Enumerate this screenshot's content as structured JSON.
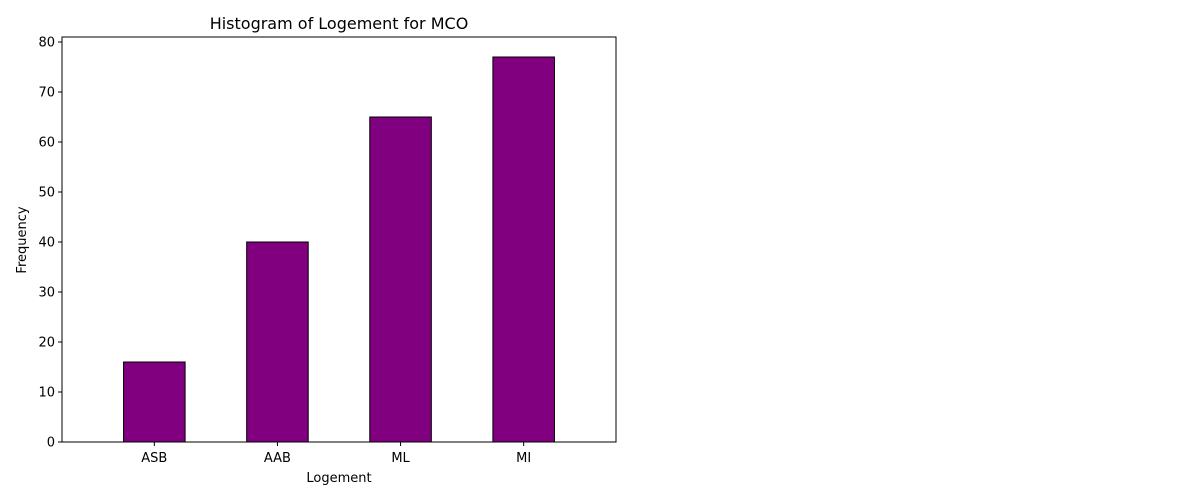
{
  "chart_data": {
    "type": "bar",
    "title": "Histogram of Logement for MCO",
    "xlabel": "Logement",
    "ylabel": "Frequency",
    "categories": [
      "ASB",
      "AAB",
      "ML",
      "MI"
    ],
    "values": [
      16,
      40,
      65,
      77
    ],
    "ylim": [
      0,
      81
    ],
    "yticks": [
      0,
      10,
      20,
      30,
      40,
      50,
      60,
      70,
      80
    ],
    "grid": false,
    "colors": {
      "bar_fill": "#800080",
      "bar_edge": "#000000"
    }
  }
}
